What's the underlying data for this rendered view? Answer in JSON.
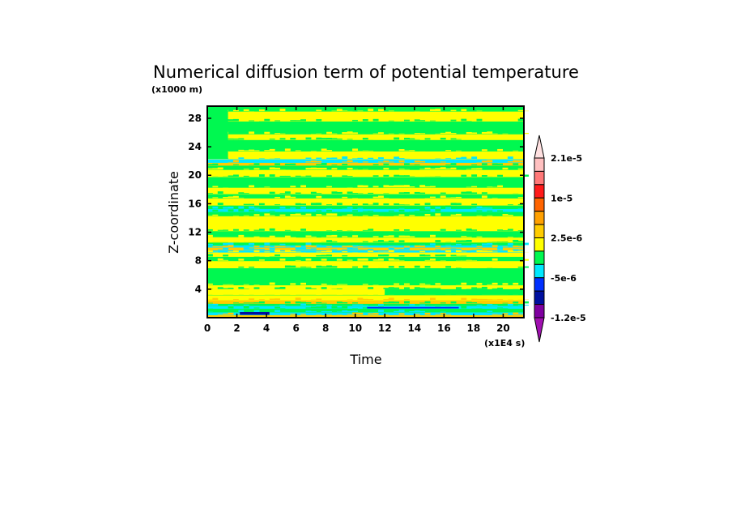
{
  "chart_data": {
    "type": "heatmap",
    "title": "Numerical diffusion term of potential temperature",
    "xlabel": "Time",
    "ylabel": "Z-coordinate",
    "x_unit_label": "(x1E4 s)",
    "y_unit_label": "(x1000 m)",
    "xlim": [
      0,
      21.4
    ],
    "ylim": [
      0,
      29.7
    ],
    "xticks": [
      "0",
      "2",
      "4",
      "6",
      "8",
      "10",
      "12",
      "14",
      "16",
      "18",
      "20"
    ],
    "yticks": [
      "4",
      "8",
      "12",
      "16",
      "20",
      "24",
      "28"
    ],
    "colorbar": {
      "colors": [
        "#ffe0e0",
        "#ffc0c0",
        "#ff7878",
        "#ff1a1a",
        "#ff6400",
        "#ffa000",
        "#ffcc00",
        "#ffff00",
        "#00f850",
        "#00e8ff",
        "#0030ff",
        "#0010a0",
        "#7f00a0",
        "#a010b0"
      ],
      "labels": [
        "2.1e-5",
        "1e-5",
        "2.5e-6",
        "-5e-6",
        "-1.2e-5"
      ],
      "label_boundaries": [
        0,
        3,
        6,
        9,
        12
      ]
    },
    "field_bands": [
      [
        0,
        0.4,
        6
      ],
      [
        0.4,
        0.8,
        9
      ],
      [
        0.8,
        1.3,
        8
      ],
      [
        1.3,
        1.7,
        9
      ],
      [
        1.7,
        2.0,
        8
      ],
      [
        2.0,
        2.5,
        6
      ],
      [
        2.5,
        3.2,
        7
      ],
      [
        3.2,
        4.0,
        8
      ],
      [
        4.0,
        4.6,
        7
      ],
      [
        4.6,
        7.0,
        8
      ],
      [
        7.0,
        8.0,
        7
      ],
      [
        8.0,
        8.6,
        8
      ],
      [
        8.6,
        9.2,
        7
      ],
      [
        9.2,
        9.5,
        9
      ],
      [
        9.5,
        9.9,
        6
      ],
      [
        9.9,
        10.2,
        9
      ],
      [
        10.2,
        10.6,
        8
      ],
      [
        10.6,
        11.3,
        7
      ],
      [
        11.3,
        12.2,
        8
      ],
      [
        12.2,
        14.3,
        7
      ],
      [
        14.3,
        14.9,
        8
      ],
      [
        14.9,
        15.3,
        9
      ],
      [
        15.3,
        15.8,
        8
      ],
      [
        15.8,
        16.8,
        7
      ],
      [
        16.8,
        17.4,
        8
      ],
      [
        17.4,
        18.3,
        7
      ],
      [
        18.3,
        19.8,
        8
      ],
      [
        19.8,
        20.8,
        7
      ],
      [
        20.8,
        21.4,
        8
      ],
      [
        21.4,
        21.8,
        6
      ],
      [
        21.8,
        22.3,
        9
      ],
      [
        22.3,
        23.4,
        7
      ],
      [
        23.4,
        25.0,
        8
      ],
      [
        25.0,
        25.8,
        7
      ],
      [
        25.8,
        27.6,
        8
      ],
      [
        27.6,
        29.0,
        7
      ],
      [
        29.0,
        29.7,
        8
      ]
    ],
    "field_patches": [
      [
        0,
        1.4,
        22.3,
        29.7,
        8
      ],
      [
        0,
        12,
        3.2,
        4.0,
        7
      ],
      [
        12,
        21.4,
        3.2,
        4.0,
        8
      ],
      [
        0,
        6,
        10.6,
        11.3,
        7
      ],
      [
        2.2,
        4.2,
        0.4,
        0.8,
        11
      ],
      [
        10.8,
        17,
        1.3,
        1.5,
        10
      ]
    ]
  }
}
